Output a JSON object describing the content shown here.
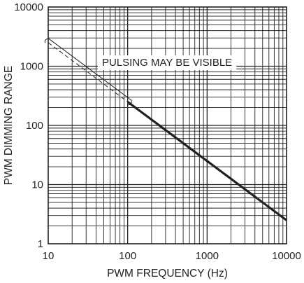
{
  "chart_data": {
    "type": "line",
    "title": "",
    "xlabel": "PWM FREQUENCY (Hz)",
    "ylabel": "PWM DIMMING RANGE",
    "x_scale": "log",
    "y_scale": "log",
    "xlim": [
      10,
      10000
    ],
    "ylim": [
      1,
      10000
    ],
    "x_ticks": [
      "10",
      "100",
      "1000",
      "10000"
    ],
    "y_ticks": [
      "1",
      "10",
      "100",
      "1000",
      "10000"
    ],
    "grid": true,
    "legend": "none",
    "series": [
      {
        "style": "solid-thick",
        "x": [
          100,
          10000
        ],
        "y": [
          250,
          2.5
        ]
      },
      {
        "style": "dashed",
        "x": [
          10,
          100
        ],
        "y": [
          2500,
          250
        ]
      }
    ],
    "annotations": [
      {
        "text": "PULSING MAY BE VISIBLE",
        "region_x": [
          10,
          100
        ],
        "region_y": [
          250,
          2500
        ]
      }
    ],
    "colors": {
      "line": "#231f20",
      "grid": "#231f20",
      "background": "#ffffff"
    }
  }
}
